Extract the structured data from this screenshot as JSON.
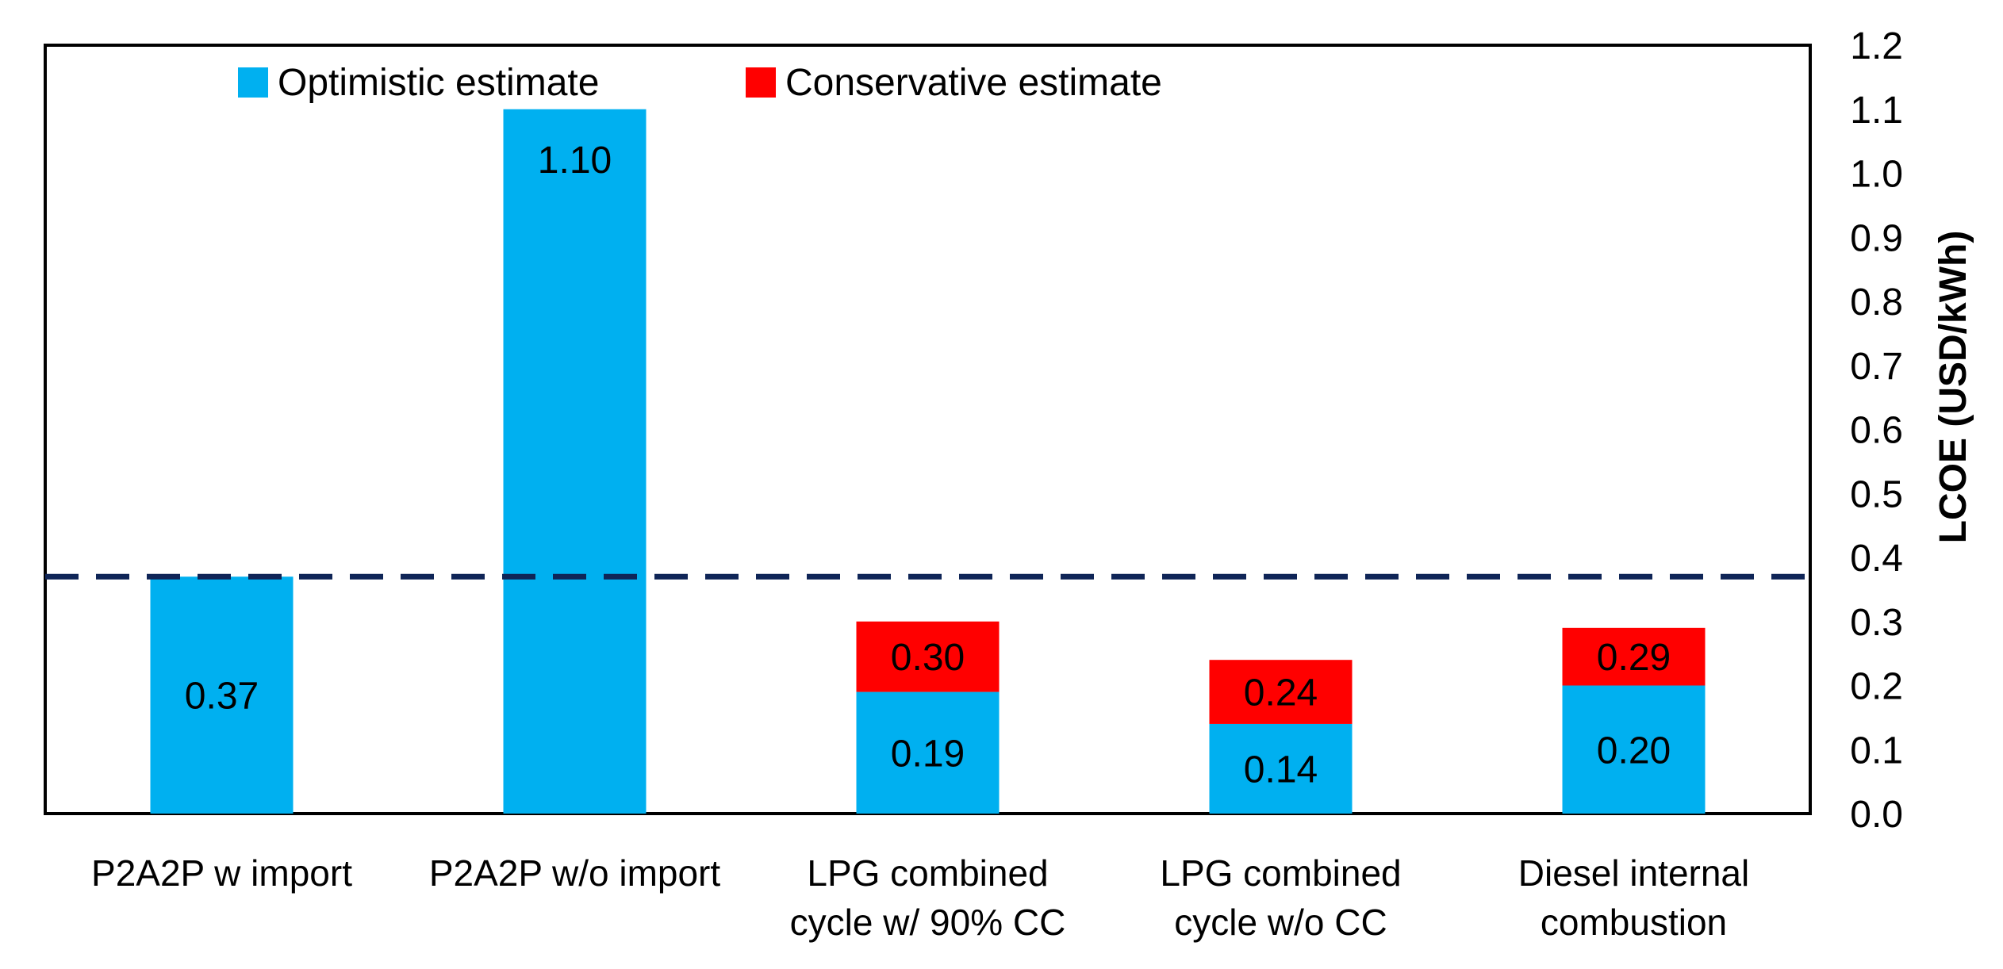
{
  "chart_data": {
    "type": "bar",
    "stacked": true,
    "categories": [
      [
        "P2A2P w import"
      ],
      [
        "P2A2P w/o import"
      ],
      [
        "LPG combined",
        "cycle w/ 90% CC"
      ],
      [
        "LPG combined",
        "cycle w/o CC"
      ],
      [
        "Diesel internal",
        "combustion"
      ]
    ],
    "series": [
      {
        "name": "Optimistic estimate",
        "color": "#00B0F0",
        "values": [
          0.37,
          1.1,
          0.19,
          0.14,
          0.2
        ],
        "labels": [
          "0.37",
          "1.10",
          "0.19",
          "0.14",
          "0.20"
        ]
      },
      {
        "name": "Conservative estimate",
        "color": "#FF0000",
        "values": [
          0,
          0,
          0.3,
          0.24,
          0.29
        ],
        "labels": [
          "",
          "",
          "0.30",
          "0.24",
          "0.29"
        ]
      }
    ],
    "reference_line": {
      "value": 0.37,
      "style": "dashed",
      "color": "#0F2557"
    },
    "ylabel": "LCOE (USD/kWh)",
    "ylim": [
      0,
      1.2
    ],
    "yticks": [
      "0.0",
      "0.1",
      "0.2",
      "0.3",
      "0.4",
      "0.5",
      "0.6",
      "0.7",
      "0.8",
      "0.9",
      "1.0",
      "1.1",
      "1.2"
    ],
    "yaxis_side": "right",
    "legend_position": "top",
    "grid": false
  }
}
